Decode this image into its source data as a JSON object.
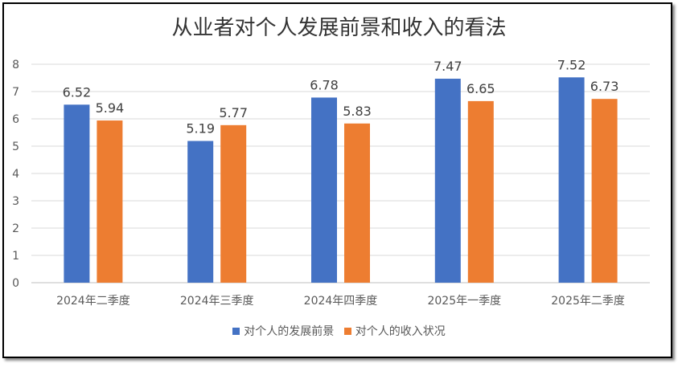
{
  "chart_data": {
    "type": "bar",
    "title": "从业者对个人发展前景和收入的看法",
    "categories": [
      "2024年二季度",
      "2024年三季度",
      "2024年四季度",
      "2025年一季度",
      "2025年二季度"
    ],
    "series": [
      {
        "name": "对个人的发展前景",
        "values": [
          6.52,
          5.19,
          6.78,
          7.47,
          7.52
        ],
        "color": "#4472C4"
      },
      {
        "name": "对个人的收入状况",
        "values": [
          5.94,
          5.77,
          5.83,
          6.65,
          6.73
        ],
        "color": "#ED7D31"
      }
    ],
    "ylim": [
      0,
      8
    ],
    "yticks": [
      0,
      1,
      2,
      3,
      4,
      5,
      6,
      7,
      8
    ],
    "grid": true,
    "data_labels": true,
    "legend": "bottom"
  }
}
